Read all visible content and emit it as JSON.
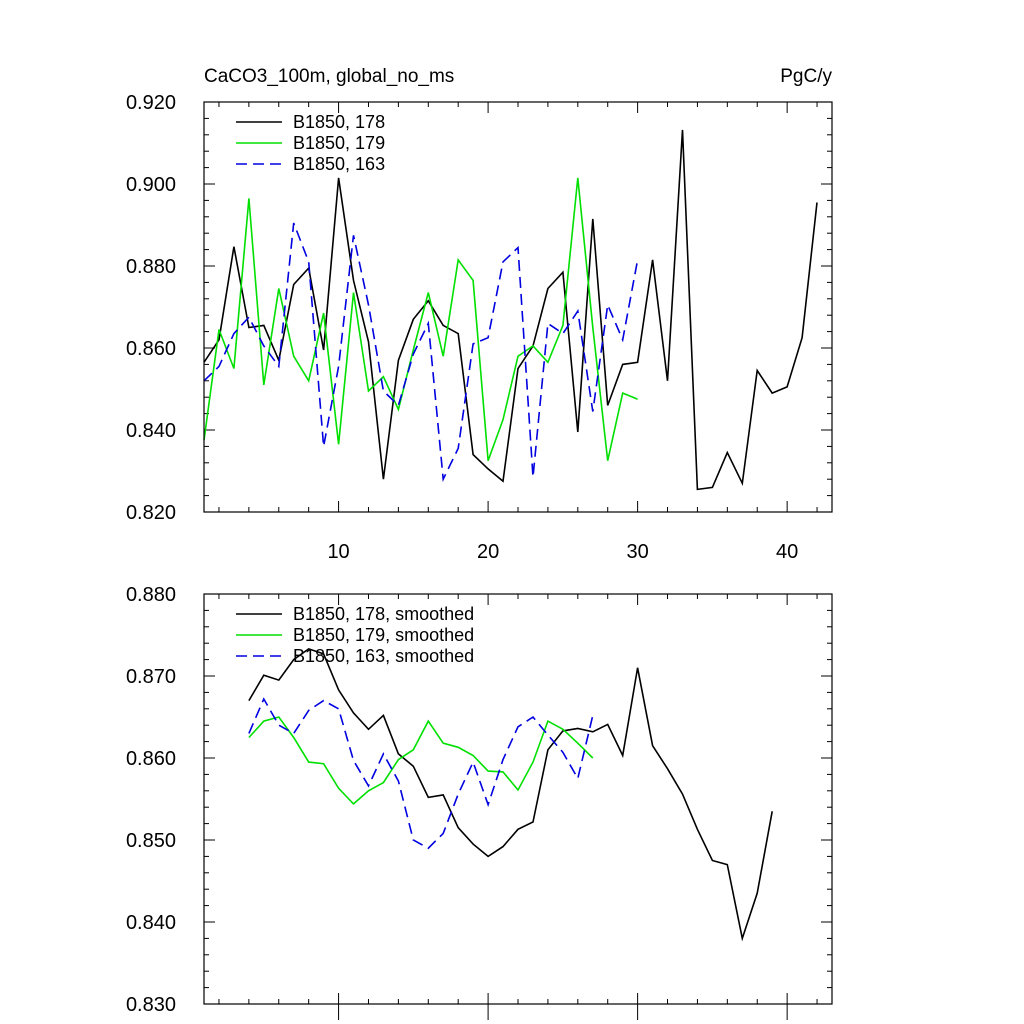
{
  "chart_data": [
    {
      "type": "line",
      "title_left": "CaCO3_100m, global_no_ms",
      "title_right": "PgC/y",
      "xlim": [
        1,
        43
      ],
      "ylim": [
        0.82,
        0.92
      ],
      "x_ticks": [
        10,
        20,
        30,
        40
      ],
      "x_tick_labels": [
        "10",
        "20",
        "30",
        "40"
      ],
      "y_ticks": [
        0.82,
        0.84,
        0.86,
        0.88,
        0.9,
        0.92
      ],
      "y_tick_labels": [
        "0.820",
        "0.840",
        "0.860",
        "0.880",
        "0.900",
        "0.920"
      ],
      "legend_position": "top-left",
      "series": [
        {
          "name": "B1850, 178",
          "color": "#000000",
          "dash": "solid",
          "x": [
            1,
            2,
            3,
            4,
            5,
            6,
            7,
            8,
            9,
            10,
            11,
            12,
            13,
            14,
            15,
            16,
            17,
            18,
            19,
            20,
            21,
            22,
            23,
            24,
            25,
            26,
            27,
            28,
            29,
            30,
            31,
            32,
            33,
            34,
            35,
            36,
            37,
            38,
            39,
            40,
            41,
            42
          ],
          "values": [
            0.8565,
            0.862,
            0.8847,
            0.865,
            0.8655,
            0.857,
            0.8755,
            0.8795,
            0.8595,
            0.9015,
            0.8765,
            0.8615,
            0.828,
            0.857,
            0.867,
            0.8715,
            0.8655,
            0.8635,
            0.834,
            0.8305,
            0.8275,
            0.855,
            0.8605,
            0.8745,
            0.8785,
            0.8395,
            0.8915,
            0.846,
            0.856,
            0.8565,
            0.8815,
            0.852,
            0.9132,
            0.8255,
            0.826,
            0.8345,
            0.827,
            0.8545,
            0.849,
            0.8505,
            0.8625,
            0.8955
          ]
        },
        {
          "name": "B1850, 179",
          "color": "#00e000",
          "dash": "solid",
          "x": [
            1,
            2,
            3,
            4,
            5,
            6,
            7,
            8,
            9,
            10,
            11,
            12,
            13,
            14,
            15,
            16,
            17,
            18,
            19,
            20,
            21,
            22,
            23,
            24,
            25,
            26,
            27,
            28,
            29,
            30
          ],
          "values": [
            0.8375,
            0.8645,
            0.855,
            0.8965,
            0.851,
            0.8745,
            0.858,
            0.852,
            0.8685,
            0.8365,
            0.8735,
            0.8495,
            0.853,
            0.845,
            0.8595,
            0.8735,
            0.858,
            0.8815,
            0.8765,
            0.8325,
            0.8425,
            0.858,
            0.8605,
            0.8565,
            0.8655,
            0.9015,
            0.865,
            0.8325,
            0.849,
            0.8475
          ]
        },
        {
          "name": "B1850, 163",
          "color": "#0000e0",
          "dash": "dashed",
          "x": [
            1,
            2,
            3,
            4,
            5,
            6,
            7,
            8,
            9,
            10,
            11,
            12,
            13,
            14,
            15,
            16,
            17,
            18,
            19,
            20,
            21,
            22,
            23,
            24,
            25,
            26,
            27,
            28,
            29,
            30
          ],
          "values": [
            0.852,
            0.8555,
            0.8635,
            0.8675,
            0.8605,
            0.8555,
            0.8905,
            0.881,
            0.836,
            0.8555,
            0.8875,
            0.8705,
            0.8495,
            0.846,
            0.8585,
            0.866,
            0.828,
            0.8355,
            0.861,
            0.8625,
            0.881,
            0.8845,
            0.8285,
            0.866,
            0.8635,
            0.869,
            0.8445,
            0.8705,
            0.862,
            0.8815
          ]
        }
      ]
    },
    {
      "type": "line",
      "xlim": [
        1,
        43
      ],
      "ylim": [
        0.83,
        0.88
      ],
      "x_ticks": [
        10,
        20,
        30,
        40
      ],
      "y_ticks": [
        0.83,
        0.84,
        0.85,
        0.86,
        0.87,
        0.88
      ],
      "y_tick_labels": [
        "0.830",
        "0.840",
        "0.850",
        "0.860",
        "0.870",
        "0.880"
      ],
      "legend_position": "top-left",
      "series": [
        {
          "name": "B1850, 178, smoothed",
          "color": "#000000",
          "dash": "solid",
          "x": [
            4,
            5,
            6,
            7,
            8,
            9,
            10,
            11,
            12,
            13,
            14,
            15,
            16,
            17,
            18,
            19,
            20,
            21,
            22,
            23,
            24,
            25,
            26,
            27,
            28,
            29,
            30,
            31,
            32,
            33,
            34,
            35,
            36,
            37,
            38,
            39
          ],
          "values": [
            0.867,
            0.8701,
            0.8695,
            0.872,
            0.8733,
            0.8727,
            0.8683,
            0.8655,
            0.8635,
            0.8652,
            0.8605,
            0.859,
            0.8552,
            0.8555,
            0.8515,
            0.8495,
            0.848,
            0.8492,
            0.8513,
            0.8522,
            0.861,
            0.8633,
            0.8636,
            0.8632,
            0.8641,
            0.8603,
            0.871,
            0.8615,
            0.8587,
            0.8556,
            0.8513,
            0.8475,
            0.847,
            0.838,
            0.8435,
            0.8535
          ]
        },
        {
          "name": "B1850, 179, smoothed",
          "color": "#00e000",
          "dash": "solid",
          "x": [
            4,
            5,
            6,
            7,
            8,
            9,
            10,
            11,
            12,
            13,
            14,
            15,
            16,
            17,
            18,
            19,
            20,
            21,
            22,
            23,
            24,
            25,
            26,
            27
          ],
          "values": [
            0.8625,
            0.8645,
            0.865,
            0.8625,
            0.8595,
            0.8593,
            0.8563,
            0.8544,
            0.856,
            0.857,
            0.8598,
            0.861,
            0.8645,
            0.8618,
            0.8613,
            0.8603,
            0.8584,
            0.8583,
            0.8561,
            0.8595,
            0.8645,
            0.8635,
            0.8618,
            0.86
          ]
        },
        {
          "name": "B1850, 163, smoothed",
          "color": "#0000e0",
          "dash": "dashed",
          "x": [
            4,
            5,
            6,
            7,
            8,
            9,
            10,
            11,
            12,
            13,
            14,
            15,
            16,
            17,
            18,
            19,
            20,
            21,
            22,
            23,
            24,
            25,
            26,
            27
          ],
          "values": [
            0.863,
            0.8672,
            0.864,
            0.863,
            0.8658,
            0.867,
            0.866,
            0.8597,
            0.8566,
            0.8605,
            0.8572,
            0.85,
            0.849,
            0.8508,
            0.8556,
            0.8595,
            0.8543,
            0.8598,
            0.8638,
            0.865,
            0.8628,
            0.8607,
            0.8575,
            0.8652
          ]
        }
      ]
    }
  ]
}
